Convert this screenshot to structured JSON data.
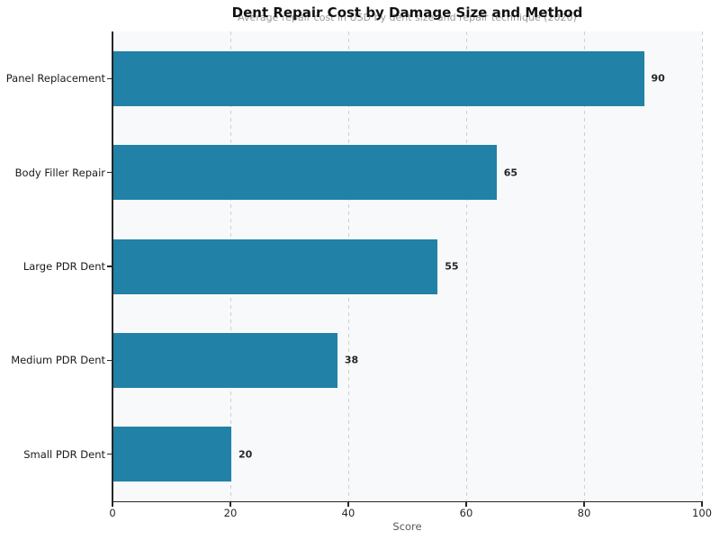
{
  "header": {
    "title": "Dent Repair Cost by Damage Size and Method",
    "subtitle": "Average repair cost in USD by dent size and repair technique (2020)"
  },
  "chart_data": {
    "type": "bar",
    "orientation": "horizontal",
    "title": "Dent Repair Cost by Damage Size and Method",
    "subtitle": "Average repair cost in USD by dent size and repair technique (2020)",
    "categories": [
      "Panel Replacement",
      "Body Filler Repair",
      "Large PDR Dent",
      "Medium PDR Dent",
      "Small PDR Dent"
    ],
    "values": [
      90,
      65,
      55,
      38,
      20
    ],
    "value_labels": [
      "90",
      "65",
      "55",
      "38",
      "20"
    ],
    "xlabel": "Score",
    "ylabel": "",
    "xlim": [
      0,
      100
    ],
    "xticks": [
      0,
      20,
      40,
      60,
      80,
      100
    ],
    "xtick_labels": [
      "0",
      "20",
      "40",
      "60",
      "80",
      "100"
    ],
    "grid": "vertical-dashed",
    "legend": "none"
  },
  "colors": {
    "bar_fill": "#2181a6",
    "plot_background": "#f7f9fa",
    "figure_background": "#ffffff",
    "gridline": "#cdd1d4",
    "spine": "#262626",
    "title_text": "#111111",
    "subtitle_text": "#9a9a9a",
    "tick_text": "#262626",
    "category_text": "#1a1a1a",
    "value_text": "#262626",
    "axis_label_text": "#595959"
  }
}
